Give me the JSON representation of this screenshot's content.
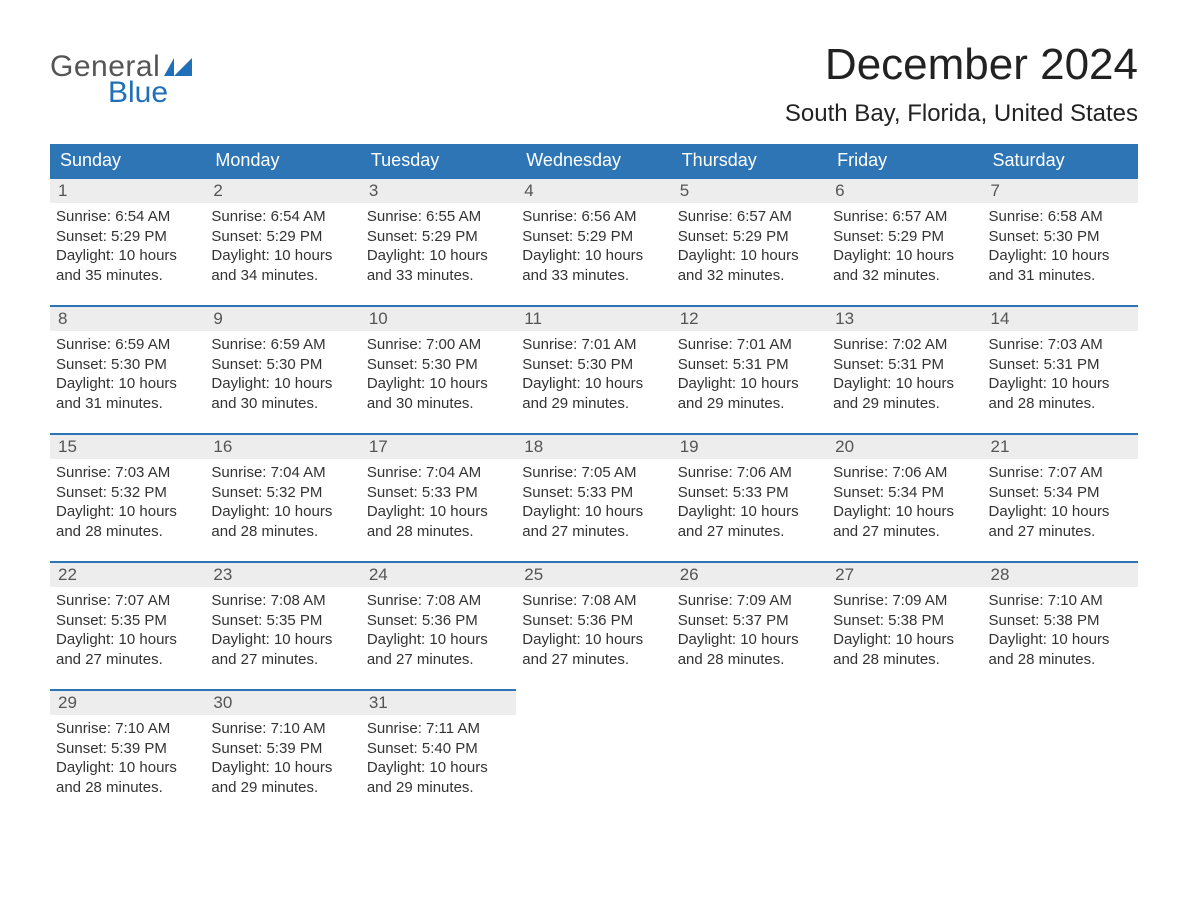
{
  "brand": {
    "word1": "General",
    "word2": "Blue",
    "flag_color": "#1f70b8",
    "text_dark": "#555555"
  },
  "title": "December 2024",
  "location": "South Bay, Florida, United States",
  "header_bg": "#2e75b6",
  "daynum_bg": "#ededed",
  "row_border": "#2e75b6",
  "day_headers": [
    "Sunday",
    "Monday",
    "Tuesday",
    "Wednesday",
    "Thursday",
    "Friday",
    "Saturday"
  ],
  "weeks": [
    [
      {
        "n": "1",
        "sunrise": "6:54 AM",
        "sunset": "5:29 PM",
        "daylight": "10 hours and 35 minutes."
      },
      {
        "n": "2",
        "sunrise": "6:54 AM",
        "sunset": "5:29 PM",
        "daylight": "10 hours and 34 minutes."
      },
      {
        "n": "3",
        "sunrise": "6:55 AM",
        "sunset": "5:29 PM",
        "daylight": "10 hours and 33 minutes."
      },
      {
        "n": "4",
        "sunrise": "6:56 AM",
        "sunset": "5:29 PM",
        "daylight": "10 hours and 33 minutes."
      },
      {
        "n": "5",
        "sunrise": "6:57 AM",
        "sunset": "5:29 PM",
        "daylight": "10 hours and 32 minutes."
      },
      {
        "n": "6",
        "sunrise": "6:57 AM",
        "sunset": "5:29 PM",
        "daylight": "10 hours and 32 minutes."
      },
      {
        "n": "7",
        "sunrise": "6:58 AM",
        "sunset": "5:30 PM",
        "daylight": "10 hours and 31 minutes."
      }
    ],
    [
      {
        "n": "8",
        "sunrise": "6:59 AM",
        "sunset": "5:30 PM",
        "daylight": "10 hours and 31 minutes."
      },
      {
        "n": "9",
        "sunrise": "6:59 AM",
        "sunset": "5:30 PM",
        "daylight": "10 hours and 30 minutes."
      },
      {
        "n": "10",
        "sunrise": "7:00 AM",
        "sunset": "5:30 PM",
        "daylight": "10 hours and 30 minutes."
      },
      {
        "n": "11",
        "sunrise": "7:01 AM",
        "sunset": "5:30 PM",
        "daylight": "10 hours and 29 minutes."
      },
      {
        "n": "12",
        "sunrise": "7:01 AM",
        "sunset": "5:31 PM",
        "daylight": "10 hours and 29 minutes."
      },
      {
        "n": "13",
        "sunrise": "7:02 AM",
        "sunset": "5:31 PM",
        "daylight": "10 hours and 29 minutes."
      },
      {
        "n": "14",
        "sunrise": "7:03 AM",
        "sunset": "5:31 PM",
        "daylight": "10 hours and 28 minutes."
      }
    ],
    [
      {
        "n": "15",
        "sunrise": "7:03 AM",
        "sunset": "5:32 PM",
        "daylight": "10 hours and 28 minutes."
      },
      {
        "n": "16",
        "sunrise": "7:04 AM",
        "sunset": "5:32 PM",
        "daylight": "10 hours and 28 minutes."
      },
      {
        "n": "17",
        "sunrise": "7:04 AM",
        "sunset": "5:33 PM",
        "daylight": "10 hours and 28 minutes."
      },
      {
        "n": "18",
        "sunrise": "7:05 AM",
        "sunset": "5:33 PM",
        "daylight": "10 hours and 27 minutes."
      },
      {
        "n": "19",
        "sunrise": "7:06 AM",
        "sunset": "5:33 PM",
        "daylight": "10 hours and 27 minutes."
      },
      {
        "n": "20",
        "sunrise": "7:06 AM",
        "sunset": "5:34 PM",
        "daylight": "10 hours and 27 minutes."
      },
      {
        "n": "21",
        "sunrise": "7:07 AM",
        "sunset": "5:34 PM",
        "daylight": "10 hours and 27 minutes."
      }
    ],
    [
      {
        "n": "22",
        "sunrise": "7:07 AM",
        "sunset": "5:35 PM",
        "daylight": "10 hours and 27 minutes."
      },
      {
        "n": "23",
        "sunrise": "7:08 AM",
        "sunset": "5:35 PM",
        "daylight": "10 hours and 27 minutes."
      },
      {
        "n": "24",
        "sunrise": "7:08 AM",
        "sunset": "5:36 PM",
        "daylight": "10 hours and 27 minutes."
      },
      {
        "n": "25",
        "sunrise": "7:08 AM",
        "sunset": "5:36 PM",
        "daylight": "10 hours and 27 minutes."
      },
      {
        "n": "26",
        "sunrise": "7:09 AM",
        "sunset": "5:37 PM",
        "daylight": "10 hours and 28 minutes."
      },
      {
        "n": "27",
        "sunrise": "7:09 AM",
        "sunset": "5:38 PM",
        "daylight": "10 hours and 28 minutes."
      },
      {
        "n": "28",
        "sunrise": "7:10 AM",
        "sunset": "5:38 PM",
        "daylight": "10 hours and 28 minutes."
      }
    ],
    [
      {
        "n": "29",
        "sunrise": "7:10 AM",
        "sunset": "5:39 PM",
        "daylight": "10 hours and 28 minutes."
      },
      {
        "n": "30",
        "sunrise": "7:10 AM",
        "sunset": "5:39 PM",
        "daylight": "10 hours and 29 minutes."
      },
      {
        "n": "31",
        "sunrise": "7:11 AM",
        "sunset": "5:40 PM",
        "daylight": "10 hours and 29 minutes."
      },
      null,
      null,
      null,
      null
    ]
  ],
  "labels": {
    "sunrise": "Sunrise: ",
    "sunset": "Sunset: ",
    "daylight": "Daylight: "
  }
}
